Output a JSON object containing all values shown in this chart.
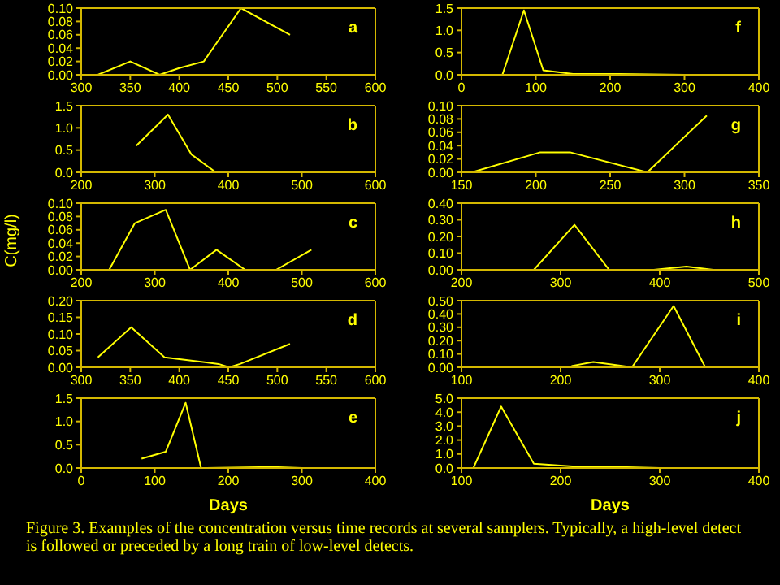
{
  "chart_data": [
    {
      "type": "line",
      "annotations": [
        "a"
      ],
      "x": [
        317,
        350,
        380,
        400,
        425,
        463,
        513
      ],
      "values": [
        0,
        0.02,
        0,
        0.01,
        0.02,
        0.1,
        0.06
      ],
      "color": "#ffff00",
      "xlim": [
        300,
        600
      ],
      "xticks": [
        300,
        350,
        400,
        450,
        500,
        550,
        600
      ],
      "ylim": [
        0,
        0.1
      ],
      "yticks": [
        {
          "value": 0,
          "label": "0.00"
        },
        {
          "value": 0.02,
          "label": "0.02"
        },
        {
          "value": 0.04,
          "label": "0.04"
        },
        {
          "value": 0.06,
          "label": "0.06"
        },
        {
          "value": 0.08,
          "label": "0.08"
        },
        {
          "value": 0.1,
          "label": "0.10"
        }
      ],
      "marker": "none"
    },
    {
      "type": "line",
      "annotations": [
        "f"
      ],
      "x": [
        55,
        84,
        110,
        150,
        200,
        300
      ],
      "values": [
        0,
        1.45,
        0.1,
        0.02,
        0.02,
        0
      ],
      "color": "#ffff00",
      "xlim": [
        0,
        400
      ],
      "xticks": [
        0,
        100,
        200,
        300,
        400
      ],
      "ylim": [
        0,
        1.5
      ],
      "yticks": [
        {
          "value": 0,
          "label": "0.0"
        },
        {
          "value": 0.5,
          "label": "0.5"
        },
        {
          "value": 1,
          "label": "1.0"
        },
        {
          "value": 1.5,
          "label": "1.5"
        }
      ],
      "marker": "none"
    },
    {
      "type": "line",
      "annotations": [
        "b"
      ],
      "x": [
        275,
        318,
        350,
        383,
        460,
        510
      ],
      "values": [
        0.6,
        1.3,
        0.4,
        0,
        0.01,
        0.01
      ],
      "color": "#ffff00",
      "xlim": [
        200,
        600
      ],
      "xticks": [
        200,
        300,
        400,
        500,
        600
      ],
      "ylim": [
        0,
        1.5
      ],
      "yticks": [
        {
          "value": 0,
          "label": "0.0"
        },
        {
          "value": 0.5,
          "label": "0.5"
        },
        {
          "value": 1,
          "label": "1.0"
        },
        {
          "value": 1.5,
          "label": "1.5"
        }
      ],
      "marker": "none"
    },
    {
      "type": "line",
      "annotations": [
        "g"
      ],
      "x": [
        157,
        203,
        223,
        275,
        315
      ],
      "values": [
        0,
        0.03,
        0.03,
        0,
        0.085
      ],
      "color": "#ffff00",
      "xlim": [
        150,
        350
      ],
      "xticks": [
        150,
        200,
        250,
        300,
        350
      ],
      "ylim": [
        0,
        0.1
      ],
      "yticks": [
        {
          "value": 0,
          "label": "0.00"
        },
        {
          "value": 0.02,
          "label": "0.02"
        },
        {
          "value": 0.04,
          "label": "0.04"
        },
        {
          "value": 0.06,
          "label": "0.06"
        },
        {
          "value": 0.08,
          "label": "0.08"
        },
        {
          "value": 0.1,
          "label": "0.10"
        }
      ],
      "marker": "none"
    },
    {
      "type": "line",
      "annotations": [
        "c"
      ],
      "ylabel": "C(mg/l)",
      "x": [
        238,
        273,
        315,
        348,
        384,
        423,
        465,
        513
      ],
      "values": [
        0,
        0.07,
        0.09,
        0,
        0.03,
        0,
        0,
        0.03
      ],
      "color": "#ffff00",
      "xlim": [
        200,
        600
      ],
      "xticks": [
        200,
        300,
        400,
        500,
        600
      ],
      "ylim": [
        0,
        0.1
      ],
      "yticks": [
        {
          "value": 0,
          "label": "0.00"
        },
        {
          "value": 0.02,
          "label": "0.02"
        },
        {
          "value": 0.04,
          "label": "0.04"
        },
        {
          "value": 0.06,
          "label": "0.06"
        },
        {
          "value": 0.08,
          "label": "0.08"
        },
        {
          "value": 0.1,
          "label": "0.10"
        }
      ],
      "marker": "none"
    },
    {
      "type": "line",
      "annotations": [
        "h"
      ],
      "x": [
        273,
        314,
        349,
        394,
        427,
        454
      ],
      "values": [
        0,
        0.27,
        0,
        0,
        0.02,
        0
      ],
      "color": "#ffff00",
      "xlim": [
        200,
        500
      ],
      "xticks": [
        200,
        300,
        400,
        500
      ],
      "ylim": [
        0,
        0.4
      ],
      "yticks": [
        {
          "value": 0,
          "label": "0.00"
        },
        {
          "value": 0.1,
          "label": "0.10"
        },
        {
          "value": 0.2,
          "label": "0.20"
        },
        {
          "value": 0.3,
          "label": "0.30"
        },
        {
          "value": 0.4,
          "label": "0.40"
        }
      ],
      "marker": "none"
    },
    {
      "type": "line",
      "annotations": [
        "d"
      ],
      "x": [
        317,
        351,
        385,
        440,
        451,
        462,
        513
      ],
      "values": [
        0.03,
        0.12,
        0.03,
        0.01,
        0,
        0.01,
        0.07
      ],
      "color": "#ffff00",
      "xlim": [
        300,
        600
      ],
      "xticks": [
        300,
        350,
        400,
        450,
        500,
        550,
        600
      ],
      "ylim": [
        0,
        0.2
      ],
      "yticks": [
        {
          "value": 0,
          "label": "0.00"
        },
        {
          "value": 0.05,
          "label": "0.05"
        },
        {
          "value": 0.1,
          "label": "0.10"
        },
        {
          "value": 0.15,
          "label": "0.15"
        },
        {
          "value": 0.2,
          "label": "0.20"
        }
      ],
      "marker": "none"
    },
    {
      "type": "line",
      "annotations": [
        "i"
      ],
      "x": [
        211,
        233,
        272,
        314,
        346
      ],
      "values": [
        0.01,
        0.04,
        0,
        0.46,
        0
      ],
      "color": "#ffff00",
      "xlim": [
        100,
        400
      ],
      "xticks": [
        100,
        200,
        300,
        400
      ],
      "ylim": [
        0,
        0.5
      ],
      "yticks": [
        {
          "value": 0,
          "label": "0.00"
        },
        {
          "value": 0.1,
          "label": "0.10"
        },
        {
          "value": 0.2,
          "label": "0.20"
        },
        {
          "value": 0.3,
          "label": "0.30"
        },
        {
          "value": 0.4,
          "label": "0.40"
        },
        {
          "value": 0.5,
          "label": "0.50"
        }
      ],
      "marker": "none"
    },
    {
      "type": "line",
      "annotations": [
        "e",
        "Figure 3.  Examples of the concentration versus time records at several samplers. Typically, a high-level detect is followed or preceded by a long train of low-level detects."
      ],
      "xlabel": "Days",
      "x": [
        82,
        115,
        142,
        163,
        260,
        300
      ],
      "values": [
        0.2,
        0.35,
        1.4,
        0,
        0.02,
        0
      ],
      "color": "#ffff00",
      "xlim": [
        0,
        400
      ],
      "xticks": [
        0,
        100,
        200,
        300,
        400
      ],
      "ylim": [
        0,
        1.5
      ],
      "yticks": [
        {
          "value": 0,
          "label": "0.0"
        },
        {
          "value": 0.5,
          "label": "0.5"
        },
        {
          "value": 1,
          "label": "1.0"
        },
        {
          "value": 1.5,
          "label": "1.5"
        }
      ],
      "marker": "none"
    },
    {
      "type": "line",
      "annotations": [
        "j"
      ],
      "xlabel": "Days",
      "x": [
        112,
        140,
        173,
        215,
        248,
        300
      ],
      "values": [
        0,
        4.4,
        0.3,
        0.1,
        0.1,
        0
      ],
      "color": "#ffff00",
      "xlim": [
        100,
        400
      ],
      "xticks": [
        100,
        200,
        300,
        400
      ],
      "ylim": [
        0,
        5
      ],
      "yticks": [
        {
          "value": 0,
          "label": "0.0"
        },
        {
          "value": 1,
          "label": "1.0"
        },
        {
          "value": 2,
          "label": "2.0"
        },
        {
          "value": 3,
          "label": "3.0"
        },
        {
          "value": 4,
          "label": "4.0"
        },
        {
          "value": 5,
          "label": "5.0"
        }
      ],
      "marker": "none"
    }
  ]
}
